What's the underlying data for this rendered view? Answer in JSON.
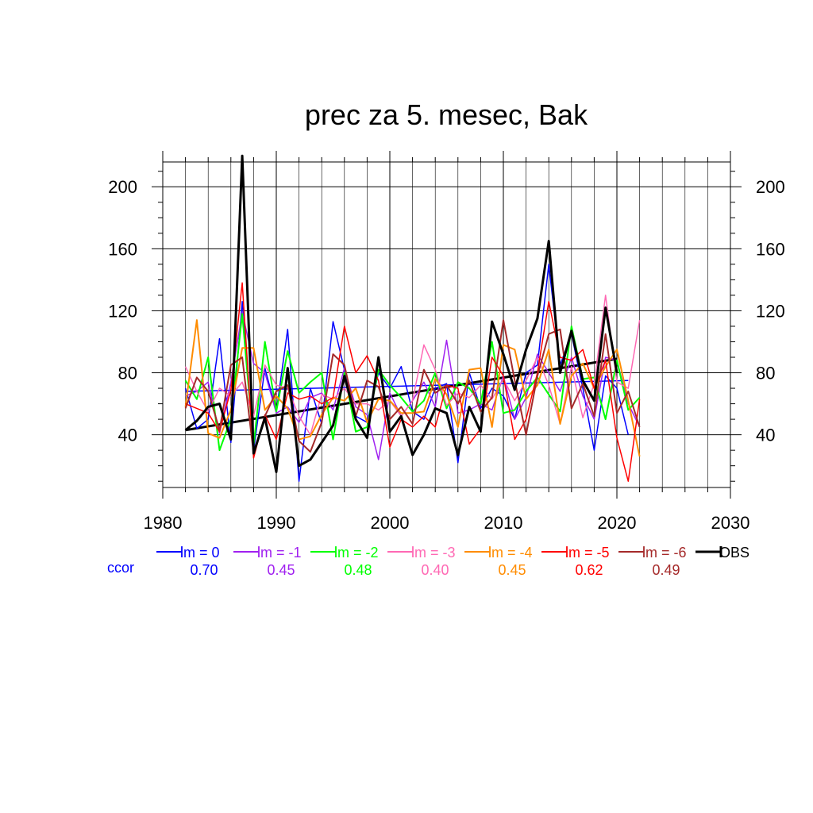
{
  "chart_data": {
    "type": "line",
    "title": "prec za 5. mesec, Bak",
    "xlabel": "",
    "ylabel": "",
    "xlim": [
      1980,
      2030
    ],
    "ylim": [
      6,
      216
    ],
    "x_ticks": [
      1980,
      1990,
      2000,
      2010,
      2020,
      2030
    ],
    "y_ticks": [
      40,
      80,
      120,
      160,
      200
    ],
    "grid": true,
    "x": [
      1982,
      1983,
      1984,
      1985,
      1986,
      1987,
      1988,
      1989,
      1990,
      1991,
      1992,
      1993,
      1994,
      1995,
      1996,
      1997,
      1998,
      1999,
      2000,
      2001,
      2002,
      2003,
      2004,
      2005,
      2006,
      2007,
      2008,
      2009,
      2010,
      2011,
      2012,
      2013,
      2014,
      2015,
      2016,
      2017,
      2018,
      2019,
      2020,
      2021,
      2022
    ],
    "series": [
      {
        "name": "lm = 0",
        "color": "#0000ff",
        "width": 1.5,
        "values": [
          70,
          44,
          50,
          102,
          35,
          126,
          30,
          83,
          55,
          108,
          10,
          70,
          47,
          113,
          82,
          52,
          48,
          80,
          70,
          84,
          55,
          50,
          70,
          73,
          22,
          80,
          57,
          70,
          65,
          50,
          80,
          85,
          150,
          85,
          105,
          70,
          30,
          78,
          70,
          40,
          null
        ],
        "trend": [
          68,
          75
        ]
      },
      {
        "name": "lm = -1",
        "color": "#a020f0",
        "width": 1.5,
        "values": [
          65,
          68,
          74,
          41,
          74,
          119,
          86,
          80,
          54,
          58,
          48,
          64,
          67,
          56,
          83,
          58,
          53,
          24,
          67,
          52,
          62,
          74,
          58,
          101,
          54,
          56,
          60,
          56,
          78,
          50,
          64,
          92,
          80,
          68,
          90,
          65,
          50,
          90,
          88,
          60,
          45
        ]
      },
      {
        "name": "lm = -2",
        "color": "#00ff00",
        "width": 2,
        "values": [
          75,
          63,
          90,
          30,
          50,
          118,
          33,
          100,
          55,
          94,
          67,
          74,
          80,
          37,
          80,
          42,
          45,
          82,
          72,
          64,
          55,
          62,
          80,
          57,
          74,
          70,
          60,
          100,
          54,
          56,
          68,
          77,
          66,
          55,
          110,
          76,
          77,
          50,
          88,
          56,
          64
        ]
      },
      {
        "name": "lm = -3",
        "color": "#ff69b4",
        "width": 1.5,
        "values": [
          84,
          68,
          55,
          70,
          65,
          74,
          52,
          85,
          72,
          70,
          52,
          40,
          66,
          63,
          70,
          60,
          60,
          56,
          62,
          52,
          62,
          98,
          82,
          59,
          67,
          64,
          72,
          63,
          76,
          62,
          75,
          90,
          72,
          47,
          84,
          51,
          73,
          130,
          74,
          70,
          114
        ]
      },
      {
        "name": "lm = -4",
        "color": "#ff8c00",
        "width": 2,
        "values": [
          58,
          114,
          41,
          38,
          56,
          96,
          96,
          56,
          65,
          57,
          37,
          39,
          53,
          64,
          62,
          70,
          48,
          63,
          62,
          54,
          54,
          55,
          76,
          66,
          45,
          82,
          83,
          45,
          98,
          95,
          63,
          72,
          95,
          47,
          78,
          86,
          70,
          84,
          95,
          62,
          26
        ]
      },
      {
        "name": "lm = -5",
        "color": "#ff0000",
        "width": 1.5,
        "values": [
          60,
          57,
          54,
          42,
          69,
          138,
          25,
          53,
          37,
          67,
          63,
          65,
          60,
          64,
          110,
          80,
          91,
          75,
          32,
          50,
          45,
          52,
          45,
          72,
          70,
          34,
          44,
          90,
          78,
          37,
          50,
          80,
          126,
          90,
          88,
          95,
          70,
          88,
          38,
          10,
          63
        ]
      },
      {
        "name": "lm = -6",
        "color": "#a52a2a",
        "width": 2,
        "values": [
          57,
          77,
          68,
          43,
          85,
          90,
          28,
          52,
          68,
          72,
          36,
          29,
          48,
          92,
          85,
          52,
          75,
          71,
          50,
          58,
          47,
          82,
          67,
          72,
          60,
          75,
          55,
          64,
          114,
          75,
          40,
          78,
          105,
          108,
          57,
          73,
          52,
          105,
          54,
          68,
          45
        ]
      },
      {
        "name": "OBS",
        "color": "#000000",
        "width": 3,
        "values": [
          43,
          49,
          58,
          60,
          37,
          220,
          28,
          51,
          16,
          83,
          20,
          24,
          35,
          46,
          78,
          50,
          38,
          90,
          42,
          52,
          27,
          40,
          57,
          54,
          27,
          58,
          42,
          113,
          92,
          69,
          95,
          115,
          165,
          80,
          107,
          75,
          62,
          122,
          80,
          null,
          null
        ],
        "trend": [
          43,
          89
        ]
      }
    ],
    "ccor": {
      "label": "ccor",
      "values": [
        "0.70",
        "0.45",
        "0.48",
        "0.40",
        "0.45",
        "0.62",
        "0.49"
      ]
    }
  }
}
